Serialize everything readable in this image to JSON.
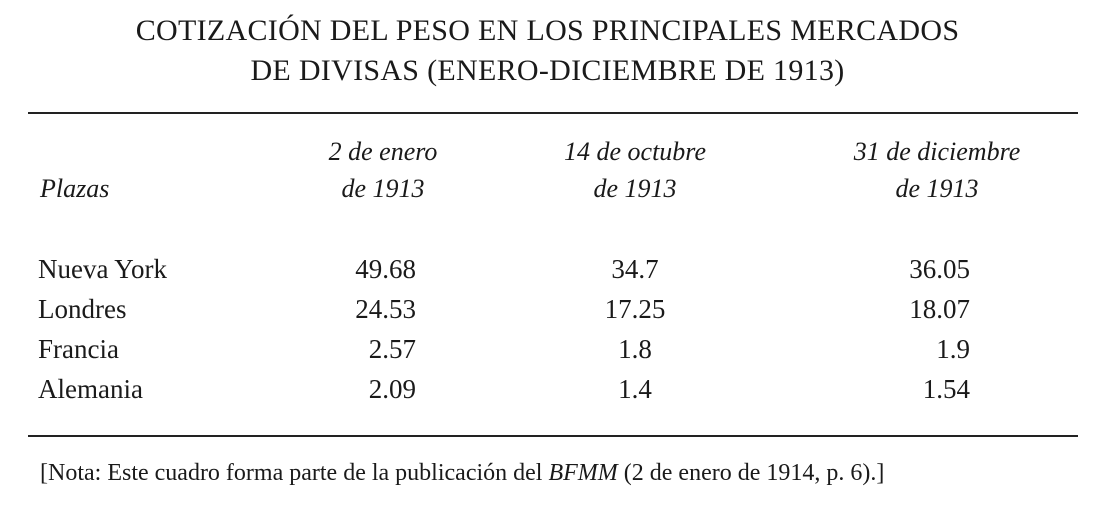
{
  "title": [
    "COTIZACIÓN DEL PESO EN LOS PRINCIPALES MERCADOS",
    "DE DIVISAS (ENERO-DICIEMBRE DE 1913)"
  ],
  "table": {
    "header": [
      [
        "Plazas"
      ],
      [
        "2 de enero",
        "de 1913"
      ],
      [
        "14 de octubre",
        "de 1913"
      ],
      [
        "31 de diciembre",
        "de 1913"
      ]
    ],
    "rows": [
      [
        "Nueva York",
        "49.68",
        "34.7",
        "36.05"
      ],
      [
        "Londres",
        "24.53",
        "17.25",
        "18.07"
      ],
      [
        "Francia",
        "2.57",
        "1.8",
        "1.9"
      ],
      [
        "Alemania",
        "2.09",
        "1.4",
        "1.54"
      ]
    ]
  },
  "note": [
    "[Nota: Este cuadro forma parte de la publicación del ",
    "BFMM",
    " (2 de enero de 1914, p. 6).]"
  ]
}
